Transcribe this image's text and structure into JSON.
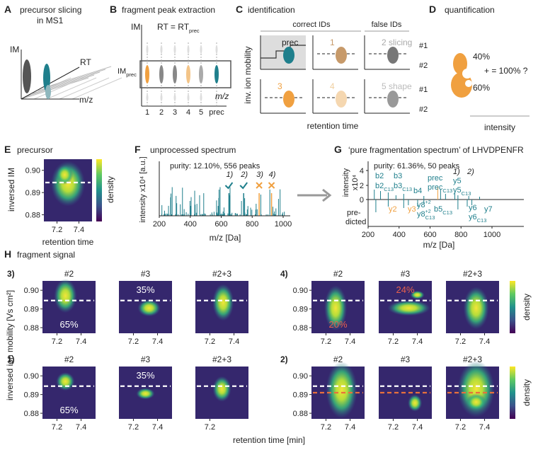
{
  "A": {
    "letter": "A",
    "title": "precursor slicing",
    "subtitle": "in MS1",
    "im": "IM",
    "rt": "RT",
    "mz": "m/z"
  },
  "B": {
    "letter": "B",
    "title": "fragment peak extraction",
    "im": "IM",
    "rt_eq": {
      "text": "RT = RT",
      "sub": "prec"
    },
    "im_prec": {
      "text": "IM",
      "sub": "prec"
    },
    "mz": "m/z",
    "ticks": [
      "1",
      "2",
      "3",
      "4",
      "5",
      "prec"
    ]
  },
  "C": {
    "letter": "C",
    "title": "identification",
    "correct": "correct IDs",
    "false": "false IDs",
    "boxes": [
      "prec",
      "1",
      "2 slicing",
      "3",
      "4",
      "5 shape"
    ],
    "rows": [
      "#1",
      "#2",
      "#1",
      "#2"
    ],
    "ylabel": "inv. ion mobility",
    "xlabel": "retention time"
  },
  "D": {
    "letter": "D",
    "title": "quantification",
    "top": "40%",
    "eq": "+   = 100% ?",
    "bottom": "60%",
    "xlabel": "intensity"
  },
  "E": {
    "letter": "E",
    "title": "precursor",
    "yticks": [
      "0.90",
      "0.89",
      "0.88"
    ],
    "xticks": [
      "7.2",
      "7.4"
    ],
    "ylabel": "inversed IM",
    "xlabel": "retention time",
    "colorbar": "density"
  },
  "F": {
    "letter": "F",
    "title": "unprocessed spectrum",
    "purity": "purity: 12.10%, 556 peaks",
    "marks": [
      "1)",
      "2)",
      "3)",
      "4)"
    ],
    "ylabel": "intensity x10⁴ [a.u.]",
    "xticks": [
      "200",
      "400",
      "600",
      "800",
      "1000"
    ],
    "xlabel": "m/z [Da]"
  },
  "G": {
    "letter": "G",
    "title": "‘pure fragmentation spectrum’ of LHVDPENFR",
    "purity": "purity: 61.36%, 50 peaks",
    "ylabel": "intensity",
    "ylabel2": "x10⁴",
    "predicted": [
      "pre-",
      "dicted"
    ],
    "yticks": [
      "4",
      "2",
      "0"
    ],
    "xticks": [
      "200",
      "400",
      "600",
      "800",
      "1000"
    ],
    "xlabel": "m/z [Da]",
    "labels": [
      {
        "text": "b2"
      },
      {
        "text": "b3"
      },
      {
        "text": "b2",
        "sub": "C13"
      },
      {
        "text": "b3",
        "sub": "C13"
      },
      {
        "text": "b4"
      },
      {
        "text": "prec"
      },
      {
        "text": "prec",
        "sub": "C13"
      },
      {
        "text": "1)"
      },
      {
        "text": "2)"
      },
      {
        "text": "y5"
      },
      {
        "text": "y5",
        "sub": "C13"
      },
      {
        "text": "y2"
      },
      {
        "text": "y3"
      },
      {
        "text": "y8",
        "sup": "+2"
      },
      {
        "text": "y8",
        "sup": "+2",
        "sub": "C13"
      },
      {
        "text": "b5",
        "sub": "C13"
      },
      {
        "text": "y6"
      },
      {
        "text": "y7"
      },
      {
        "text": "y6",
        "sub": "C13"
      }
    ]
  },
  "H": {
    "letter": "H",
    "title": "fragment signal",
    "ylabel": "inversed ion mobility [Vs cm²]",
    "xlabel": "retention time [min]",
    "colorbar": "density",
    "yticks": [
      "0.90",
      "0.89",
      "0.88"
    ],
    "groups": [
      {
        "label": "3)",
        "panels": [
          {
            "title": "#2",
            "note": "65%",
            "xticks": [
              "7.2",
              "7.4"
            ]
          },
          {
            "title": "#3",
            "note": "35%",
            "xticks": [
              "7.2",
              "7.4"
            ]
          },
          {
            "title": "#2+3",
            "xticks": [
              "7.2",
              "7.4"
            ]
          }
        ]
      },
      {
        "label": "4)",
        "panels": [
          {
            "title": "#2",
            "note": "20%",
            "xticks": [
              "7.2",
              "7.4"
            ]
          },
          {
            "title": "#3",
            "note": "24%",
            "xticks": [
              "7.2",
              "7.4"
            ]
          },
          {
            "title": "#2+3",
            "xticks": [
              "7.2",
              "7.4"
            ]
          }
        ]
      },
      {
        "label": "1)",
        "panels": [
          {
            "title": "#2",
            "note": "65%",
            "xticks": [
              "7.2",
              "7.4"
            ]
          },
          {
            "title": "#3",
            "note": "35%",
            "xticks": [
              "7.2",
              "7.4"
            ]
          },
          {
            "title": "#2+3",
            "xticks": [
              "7.2"
            ]
          }
        ]
      },
      {
        "label": "2)",
        "panels": [
          {
            "title": "#2",
            "xticks": [
              "7.2",
              "7.4"
            ]
          },
          {
            "title": "#3",
            "xticks": [
              "7.2",
              "7.4"
            ]
          },
          {
            "title": "#2+3",
            "xticks": [
              "7.2",
              "7.4"
            ]
          }
        ]
      }
    ]
  }
}
